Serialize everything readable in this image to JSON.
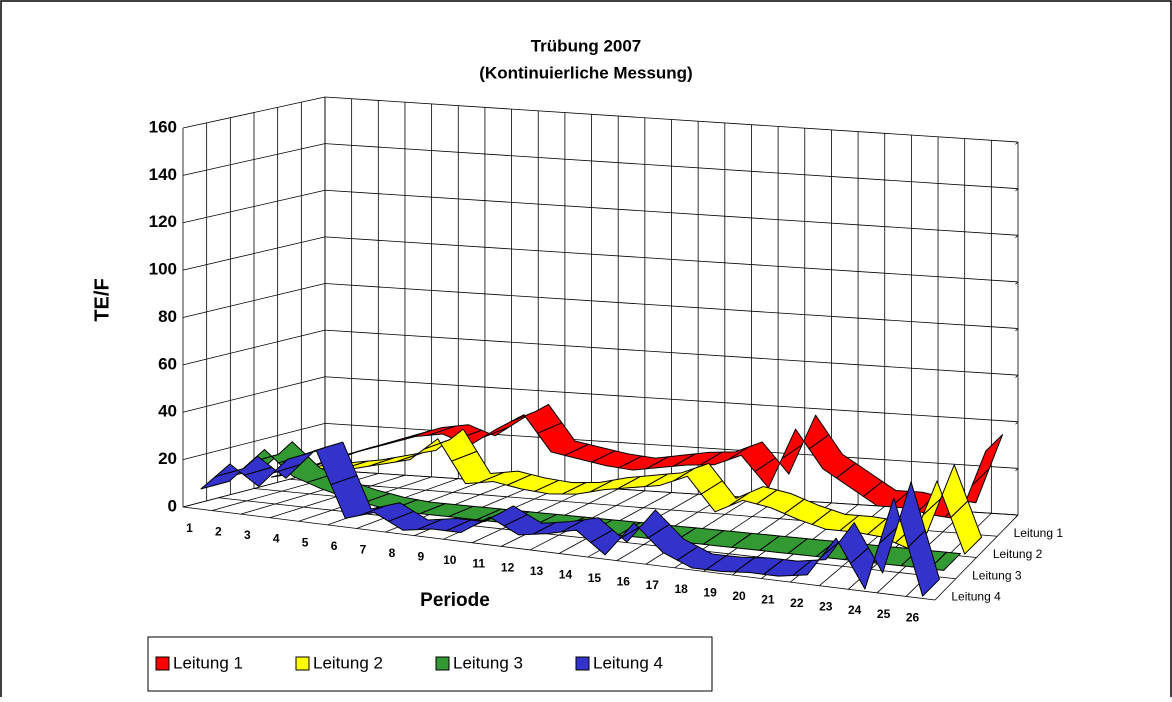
{
  "chart_data": {
    "type": "ribbon3d",
    "title": "Trübung 2007",
    "subtitle": "(Kontinuierliche Messung)",
    "y_label": "TE/F",
    "x_label": "Periode",
    "categories": [
      "1",
      "2",
      "3",
      "4",
      "5",
      "6",
      "7",
      "8",
      "9",
      "10",
      "11",
      "12",
      "13",
      "14",
      "15",
      "16",
      "17",
      "18",
      "19",
      "20",
      "21",
      "22",
      "23",
      "24",
      "25",
      "26"
    ],
    "series": [
      {
        "name": "Leitung 1",
        "color": "#ff0000",
        "values": [
          5,
          10,
          14,
          18,
          22,
          24,
          20,
          28,
          35,
          20,
          18,
          16,
          15,
          17,
          19,
          20,
          25,
          12,
          38,
          22,
          15,
          8,
          8,
          6,
          5,
          35
        ]
      },
      {
        "name": "Leitung 2",
        "color": "#ffff00",
        "values": [
          5,
          8,
          10,
          12,
          15,
          18,
          28,
          10,
          12,
          10,
          9,
          10,
          13,
          15,
          17,
          22,
          8,
          14,
          12,
          8,
          5,
          5,
          4,
          0,
          30,
          0
        ]
      },
      {
        "name": "Leitung 3",
        "color": "#339933",
        "values": [
          10,
          22,
          12,
          8,
          5,
          3,
          2,
          2,
          2,
          2,
          2,
          2,
          2,
          2,
          2,
          2,
          2,
          2,
          2,
          2,
          2,
          2,
          2,
          2,
          2,
          2
        ]
      },
      {
        "name": "Leitung 4",
        "color": "#3333cc",
        "values": [
          8,
          20,
          12,
          25,
          30,
          3,
          7,
          1,
          3,
          3,
          11,
          5,
          7,
          10,
          1,
          16,
          5,
          0,
          0,
          1,
          1,
          3,
          20,
          0,
          40,
          0
        ]
      }
    ],
    "ylim": [
      0,
      160
    ],
    "yticks": [
      0,
      20,
      40,
      60,
      80,
      100,
      120,
      140,
      160
    ],
    "grid": true
  }
}
